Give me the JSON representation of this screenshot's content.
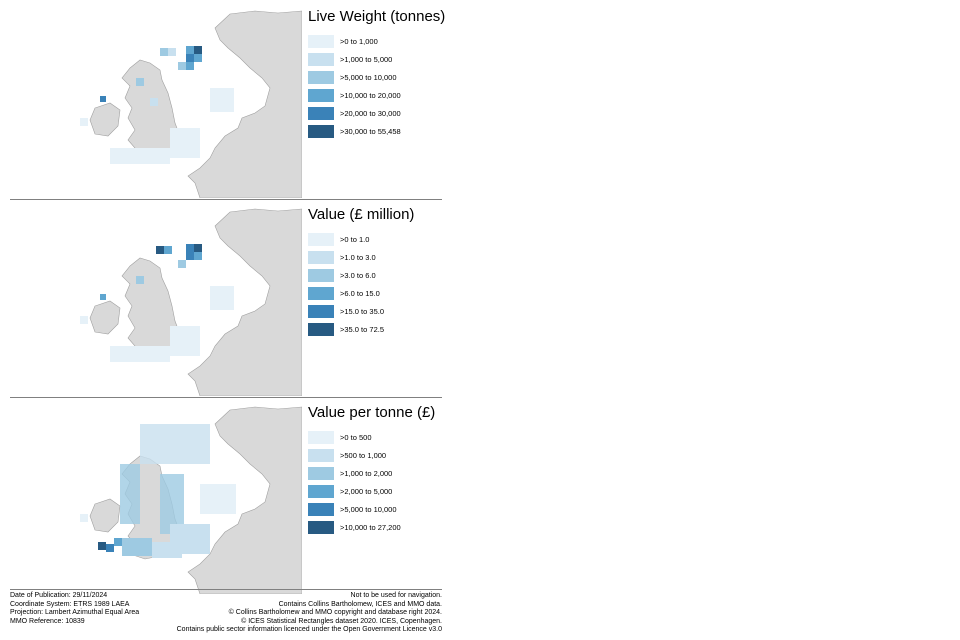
{
  "panels": [
    {
      "title": "Live Weight (tonnes)",
      "legend": [
        {
          "label": ">0 to 1,000",
          "color": "#e6f1f8"
        },
        {
          "label": ">1,000 to 5,000",
          "color": "#c8e0ef"
        },
        {
          "label": ">5,000 to 10,000",
          "color": "#9ecae2"
        },
        {
          "label": ">10,000 to 20,000",
          "color": "#5fa6d0"
        },
        {
          "label": ">20,000 to 30,000",
          "color": "#3a82b8"
        },
        {
          "label": ">30,000 to 55,458",
          "color": "#275a82"
        }
      ]
    },
    {
      "title": "Value (£ million)",
      "legend": [
        {
          "label": ">0 to 1.0",
          "color": "#e6f1f8"
        },
        {
          "label": ">1.0 to 3.0",
          "color": "#c8e0ef"
        },
        {
          "label": ">3.0 to 6.0",
          "color": "#9ecae2"
        },
        {
          "label": ">6.0 to 15.0",
          "color": "#5fa6d0"
        },
        {
          "label": ">15.0 to 35.0",
          "color": "#3a82b8"
        },
        {
          "label": ">35.0 to 72.5",
          "color": "#275a82"
        }
      ]
    },
    {
      "title": "Value per tonne (£)",
      "legend": [
        {
          "label": ">0 to 500",
          "color": "#e6f1f8"
        },
        {
          "label": ">500 to 1,000",
          "color": "#c8e0ef"
        },
        {
          "label": ">1,000 to 2,000",
          "color": "#9ecae2"
        },
        {
          "label": ">2,000 to 5,000",
          "color": "#5fa6d0"
        },
        {
          "label": ">5,000 to 10,000",
          "color": "#3a82b8"
        },
        {
          "label": ">10,000 to 27,200",
          "color": "#275a82"
        }
      ]
    }
  ],
  "footer": {
    "left": [
      "Date of Publication: 29/11/2024",
      "Coordinate System: ETRS 1989 LAEA",
      "Projection: Lambert Azimuthal Equal Area",
      "MMO Reference: 10839"
    ],
    "right": [
      "Not to be used for navigation.",
      "Contains Collins Bartholomew, ICES and MMO data.",
      "© Collins Bartholomew and MMO copyright and database right 2024.",
      "© ICES Statistical Rectangles dataset 2020. ICES, Copenhagen.",
      "Contains public sector information licenced under the Open Government Licence v3.0"
    ]
  },
  "map_colors": {
    "land": "#d9d9d9",
    "land_border": "#a0a0a0",
    "sea": "#ffffff"
  }
}
